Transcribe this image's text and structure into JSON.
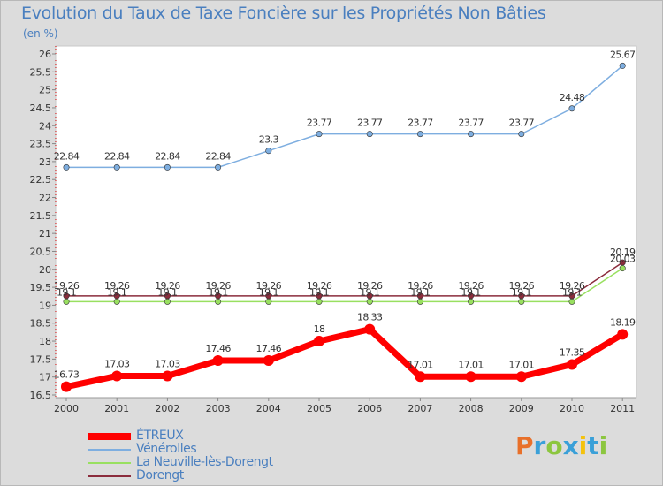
{
  "chart_data": {
    "type": "line",
    "title": "Evolution du Taux de Taxe Foncière sur les Propriétés Non Bâties",
    "ylabel": "(en %)",
    "xlabel": "",
    "ylim": [
      16.5,
      26
    ],
    "yticks": [
      16.5,
      17,
      17.5,
      18,
      18.5,
      19,
      19.5,
      20,
      20.5,
      21,
      21.5,
      22,
      22.5,
      23,
      23.5,
      24,
      24.5,
      25,
      25.5,
      26
    ],
    "ytick_labels": [
      "16.5",
      "17",
      "17.5",
      "18",
      "18.5",
      "19",
      "19.5",
      "20",
      "20.5",
      "21",
      "21.5",
      "22",
      "22.5",
      "23",
      "23.5",
      "24",
      "24.5",
      "25",
      "25.5",
      "26"
    ],
    "categories": [
      "2000",
      "2001",
      "2002",
      "2003",
      "2004",
      "2005",
      "2006",
      "2007",
      "2008",
      "2009",
      "2010",
      "2011"
    ],
    "series": [
      {
        "name": "ÉTREUX",
        "color": "#ff0000",
        "values": [
          16.73,
          17.03,
          17.03,
          17.46,
          17.46,
          18,
          18.33,
          17.01,
          17.01,
          17.01,
          17.35,
          18.19
        ],
        "labels": [
          "16.73",
          "17.03",
          "17.03",
          "17.46",
          "17.46",
          "18",
          "18.33",
          "17.01",
          "17.01",
          "17.01",
          "17.35",
          "18.19"
        ]
      },
      {
        "name": "Vénérolles",
        "color": "#7eaee0",
        "values": [
          22.84,
          22.84,
          22.84,
          22.84,
          23.3,
          23.77,
          23.77,
          23.77,
          23.77,
          23.77,
          24.48,
          25.67
        ],
        "labels": [
          "22.84",
          "22.84",
          "22.84",
          "22.84",
          "23.3",
          "23.77",
          "23.77",
          "23.77",
          "23.77",
          "23.77",
          "24.48",
          "25.67"
        ]
      },
      {
        "name": "La Neuville-lès-Dorengt",
        "color": "#99e060",
        "values": [
          19.1,
          19.1,
          19.1,
          19.1,
          19.1,
          19.1,
          19.1,
          19.1,
          19.1,
          19.1,
          19.1,
          20.03
        ],
        "labels": [
          "19.1",
          "19.1",
          "19.1",
          "19.1",
          "19.1",
          "19.1",
          "19.1",
          "19.1",
          "19.1",
          "19.1",
          "19.1",
          "20.03"
        ]
      },
      {
        "name": "Dorengt",
        "color": "#8b2c3c",
        "values": [
          19.26,
          19.26,
          19.26,
          19.26,
          19.26,
          19.26,
          19.26,
          19.26,
          19.26,
          19.26,
          19.26,
          20.19
        ],
        "labels": [
          "19.26",
          "19.26",
          "19.26",
          "19.26",
          "19.26",
          "19.26",
          "19.26",
          "19.26",
          "19.26",
          "19.26",
          "19.26",
          "20.19"
        ]
      }
    ]
  },
  "logo": {
    "letters": [
      "P",
      "r",
      "o",
      "x",
      "i",
      "t",
      "i"
    ],
    "colors": [
      "#e8702a",
      "#3aa0d8",
      "#8cc63f",
      "#3aa0d8",
      "#f4c20d",
      "#3aa0d8",
      "#8cc63f"
    ]
  }
}
